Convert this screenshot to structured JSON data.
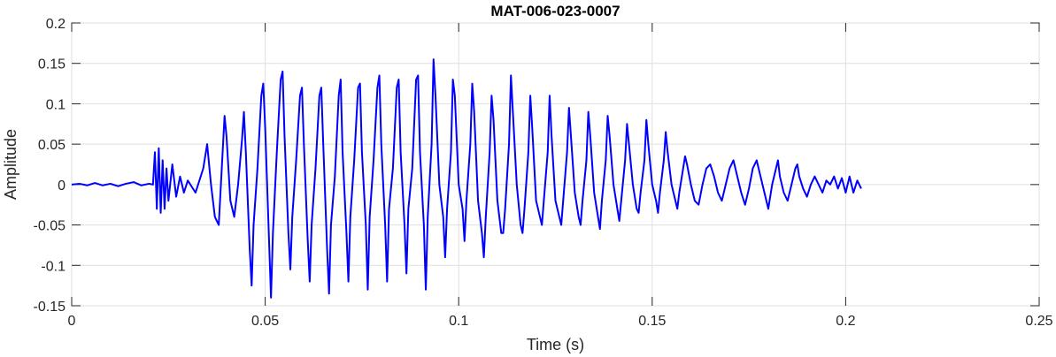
{
  "chart_data": {
    "type": "line",
    "title": "MAT-006-023-0007",
    "xlabel": "Time (s)",
    "ylabel": "Amplitude",
    "xlim": [
      0,
      0.25
    ],
    "ylim": [
      -0.15,
      0.2
    ],
    "grid": true,
    "x_ticks": [
      0,
      0.05,
      0.1,
      0.15,
      0.2,
      0.25
    ],
    "x_tick_labels": [
      "0",
      "0.05",
      "0.1",
      "0.15",
      "0.2",
      "0.25"
    ],
    "y_ticks": [
      -0.15,
      -0.1,
      -0.05,
      0,
      0.05,
      0.1,
      0.15,
      0.2
    ],
    "y_tick_labels": [
      "-0.15",
      "-0.1",
      "-0.05",
      "0",
      "0.05",
      "0.1",
      "0.15",
      "0.2"
    ],
    "series": [
      {
        "color": "#0000ff",
        "x_start": 0,
        "x_end": 0.204,
        "points": [
          [
            0,
            0
          ],
          [
            0.002,
            0.001
          ],
          [
            0.004,
            -0.001
          ],
          [
            0.006,
            0.002
          ],
          [
            0.008,
            -0.001
          ],
          [
            0.01,
            0.001
          ],
          [
            0.012,
            -0.002
          ],
          [
            0.014,
            0.001
          ],
          [
            0.016,
            0.003
          ],
          [
            0.018,
            -0.001
          ],
          [
            0.02,
            0.001
          ],
          [
            0.021,
            0.0
          ],
          [
            0.0215,
            0.04
          ],
          [
            0.022,
            -0.03
          ],
          [
            0.0225,
            0.045
          ],
          [
            0.023,
            -0.035
          ],
          [
            0.0235,
            0.03
          ],
          [
            0.024,
            -0.03
          ],
          [
            0.0245,
            0.02
          ],
          [
            0.025,
            -0.02
          ],
          [
            0.026,
            0.025
          ],
          [
            0.027,
            -0.015
          ],
          [
            0.028,
            0.01
          ],
          [
            0.029,
            -0.01
          ],
          [
            0.03,
            0.005
          ],
          [
            0.032,
            -0.01
          ],
          [
            0.034,
            0.02
          ],
          [
            0.035,
            0.05
          ],
          [
            0.036,
            0.0
          ],
          [
            0.037,
            -0.04
          ],
          [
            0.038,
            -0.05
          ],
          [
            0.039,
            0.04
          ],
          [
            0.0395,
            0.085
          ],
          [
            0.04,
            0.06
          ],
          [
            0.041,
            -0.02
          ],
          [
            0.042,
            -0.04
          ],
          [
            0.043,
            0.0
          ],
          [
            0.044,
            0.055
          ],
          [
            0.0445,
            0.09
          ],
          [
            0.045,
            0.04
          ],
          [
            0.046,
            -0.08
          ],
          [
            0.0465,
            -0.125
          ],
          [
            0.047,
            -0.05
          ],
          [
            0.048,
            0.02
          ],
          [
            0.049,
            0.11
          ],
          [
            0.0495,
            0.125
          ],
          [
            0.05,
            0.07
          ],
          [
            0.051,
            -0.07
          ],
          [
            0.0515,
            -0.14
          ],
          [
            0.052,
            -0.06
          ],
          [
            0.053,
            0.04
          ],
          [
            0.054,
            0.13
          ],
          [
            0.0545,
            0.14
          ],
          [
            0.055,
            0.06
          ],
          [
            0.056,
            -0.06
          ],
          [
            0.0565,
            -0.105
          ],
          [
            0.057,
            -0.04
          ],
          [
            0.058,
            0.03
          ],
          [
            0.059,
            0.11
          ],
          [
            0.0595,
            0.12
          ],
          [
            0.06,
            0.05
          ],
          [
            0.061,
            -0.07
          ],
          [
            0.0615,
            -0.12
          ],
          [
            0.062,
            -0.05
          ],
          [
            0.063,
            0.02
          ],
          [
            0.064,
            0.11
          ],
          [
            0.0645,
            0.12
          ],
          [
            0.065,
            0.05
          ],
          [
            0.066,
            -0.08
          ],
          [
            0.0665,
            -0.135
          ],
          [
            0.067,
            -0.05
          ],
          [
            0.068,
            0.01
          ],
          [
            0.069,
            0.11
          ],
          [
            0.0695,
            0.13
          ],
          [
            0.07,
            0.04
          ],
          [
            0.071,
            -0.06
          ],
          [
            0.0715,
            -0.12
          ],
          [
            0.072,
            -0.04
          ],
          [
            0.073,
            0.03
          ],
          [
            0.074,
            0.12
          ],
          [
            0.0745,
            0.125
          ],
          [
            0.075,
            0.04
          ],
          [
            0.076,
            -0.05
          ],
          [
            0.0765,
            -0.13
          ],
          [
            0.077,
            -0.04
          ],
          [
            0.078,
            0.03
          ],
          [
            0.079,
            0.12
          ],
          [
            0.0795,
            0.135
          ],
          [
            0.08,
            0.05
          ],
          [
            0.081,
            -0.05
          ],
          [
            0.0815,
            -0.12
          ],
          [
            0.082,
            -0.03
          ],
          [
            0.083,
            0.02
          ],
          [
            0.084,
            0.12
          ],
          [
            0.0845,
            0.13
          ],
          [
            0.085,
            0.04
          ],
          [
            0.086,
            -0.05
          ],
          [
            0.0865,
            -0.11
          ],
          [
            0.087,
            -0.03
          ],
          [
            0.088,
            0.02
          ],
          [
            0.089,
            0.13
          ],
          [
            0.0895,
            0.135
          ],
          [
            0.09,
            0.04
          ],
          [
            0.091,
            -0.05
          ],
          [
            0.0915,
            -0.13
          ],
          [
            0.092,
            -0.04
          ],
          [
            0.093,
            0.05
          ],
          [
            0.0935,
            0.155
          ],
          [
            0.094,
            0.11
          ],
          [
            0.095,
            0.0
          ],
          [
            0.096,
            -0.04
          ],
          [
            0.0965,
            -0.09
          ],
          [
            0.097,
            -0.03
          ],
          [
            0.098,
            0.04
          ],
          [
            0.0985,
            0.13
          ],
          [
            0.099,
            0.11
          ],
          [
            0.1,
            0.0
          ],
          [
            0.101,
            -0.03
          ],
          [
            0.1015,
            -0.07
          ],
          [
            0.102,
            -0.02
          ],
          [
            0.103,
            0.05
          ],
          [
            0.1035,
            0.125
          ],
          [
            0.104,
            0.09
          ],
          [
            0.105,
            -0.02
          ],
          [
            0.106,
            -0.06
          ],
          [
            0.1065,
            -0.09
          ],
          [
            0.107,
            -0.04
          ],
          [
            0.108,
            0.04
          ],
          [
            0.1085,
            0.11
          ],
          [
            0.109,
            0.08
          ],
          [
            0.11,
            -0.02
          ],
          [
            0.111,
            -0.06
          ],
          [
            0.1115,
            -0.06
          ],
          [
            0.112,
            -0.03
          ],
          [
            0.113,
            0.05
          ],
          [
            0.1135,
            0.135
          ],
          [
            0.114,
            0.09
          ],
          [
            0.115,
            0.0
          ],
          [
            0.116,
            -0.05
          ],
          [
            0.1165,
            -0.06
          ],
          [
            0.117,
            -0.03
          ],
          [
            0.118,
            0.04
          ],
          [
            0.1185,
            0.11
          ],
          [
            0.119,
            0.07
          ],
          [
            0.12,
            -0.02
          ],
          [
            0.121,
            -0.04
          ],
          [
            0.1215,
            -0.05
          ],
          [
            0.122,
            -0.02
          ],
          [
            0.123,
            0.04
          ],
          [
            0.1235,
            0.11
          ],
          [
            0.124,
            0.06
          ],
          [
            0.125,
            -0.02
          ],
          [
            0.126,
            -0.04
          ],
          [
            0.1265,
            -0.05
          ],
          [
            0.127,
            -0.02
          ],
          [
            0.128,
            0.04
          ],
          [
            0.1285,
            0.095
          ],
          [
            0.129,
            0.06
          ],
          [
            0.13,
            -0.01
          ],
          [
            0.131,
            -0.04
          ],
          [
            0.1315,
            -0.05
          ],
          [
            0.132,
            -0.02
          ],
          [
            0.133,
            0.03
          ],
          [
            0.1335,
            0.09
          ],
          [
            0.134,
            0.06
          ],
          [
            0.135,
            -0.01
          ],
          [
            0.136,
            -0.04
          ],
          [
            0.1365,
            -0.055
          ],
          [
            0.137,
            -0.02
          ],
          [
            0.138,
            0.03
          ],
          [
            0.1385,
            0.085
          ],
          [
            0.139,
            0.06
          ],
          [
            0.14,
            0.0
          ],
          [
            0.141,
            -0.03
          ],
          [
            0.1415,
            -0.045
          ],
          [
            0.142,
            -0.02
          ],
          [
            0.143,
            0.03
          ],
          [
            0.1435,
            0.075
          ],
          [
            0.144,
            0.05
          ],
          [
            0.145,
            0.0
          ],
          [
            0.146,
            -0.03
          ],
          [
            0.1465,
            -0.035
          ],
          [
            0.147,
            -0.01
          ],
          [
            0.148,
            0.03
          ],
          [
            0.1485,
            0.08
          ],
          [
            0.149,
            0.05
          ],
          [
            0.15,
            0.0
          ],
          [
            0.151,
            -0.02
          ],
          [
            0.1515,
            -0.035
          ],
          [
            0.152,
            -0.01
          ],
          [
            0.153,
            0.03
          ],
          [
            0.1535,
            0.065
          ],
          [
            0.154,
            0.04
          ],
          [
            0.155,
            0.0
          ],
          [
            0.156,
            -0.02
          ],
          [
            0.1565,
            -0.03
          ],
          [
            0.157,
            -0.01
          ],
          [
            0.158,
            0.02
          ],
          [
            0.1585,
            0.035
          ],
          [
            0.159,
            0.025
          ],
          [
            0.16,
            0.0
          ],
          [
            0.161,
            -0.02
          ],
          [
            0.162,
            -0.025
          ],
          [
            0.163,
            0.0
          ],
          [
            0.164,
            0.02
          ],
          [
            0.165,
            0.025
          ],
          [
            0.166,
            0.01
          ],
          [
            0.167,
            -0.01
          ],
          [
            0.168,
            -0.02
          ],
          [
            0.169,
            0.0
          ],
          [
            0.17,
            0.02
          ],
          [
            0.171,
            0.03
          ],
          [
            0.172,
            0.01
          ],
          [
            0.173,
            -0.01
          ],
          [
            0.174,
            -0.025
          ],
          [
            0.175,
            -0.005
          ],
          [
            0.176,
            0.02
          ],
          [
            0.177,
            0.03
          ],
          [
            0.178,
            0.01
          ],
          [
            0.179,
            -0.01
          ],
          [
            0.18,
            -0.03
          ],
          [
            0.181,
            0.0
          ],
          [
            0.182,
            0.02
          ],
          [
            0.1825,
            0.03
          ],
          [
            0.183,
            0.01
          ],
          [
            0.184,
            -0.01
          ],
          [
            0.185,
            -0.02
          ],
          [
            0.186,
            0.0
          ],
          [
            0.187,
            0.02
          ],
          [
            0.1875,
            0.025
          ],
          [
            0.188,
            0.01
          ],
          [
            0.189,
            -0.005
          ],
          [
            0.19,
            -0.015
          ],
          [
            0.191,
            0.0
          ],
          [
            0.192,
            0.01
          ],
          [
            0.193,
            0.0
          ],
          [
            0.194,
            -0.01
          ],
          [
            0.195,
            0.005
          ],
          [
            0.196,
            0.0
          ],
          [
            0.197,
            0.01
          ],
          [
            0.198,
            -0.005
          ],
          [
            0.199,
            0.008
          ],
          [
            0.2,
            -0.01
          ],
          [
            0.201,
            0.01
          ],
          [
            0.202,
            -0.01
          ],
          [
            0.203,
            0.005
          ],
          [
            0.204,
            -0.005
          ]
        ]
      }
    ]
  }
}
